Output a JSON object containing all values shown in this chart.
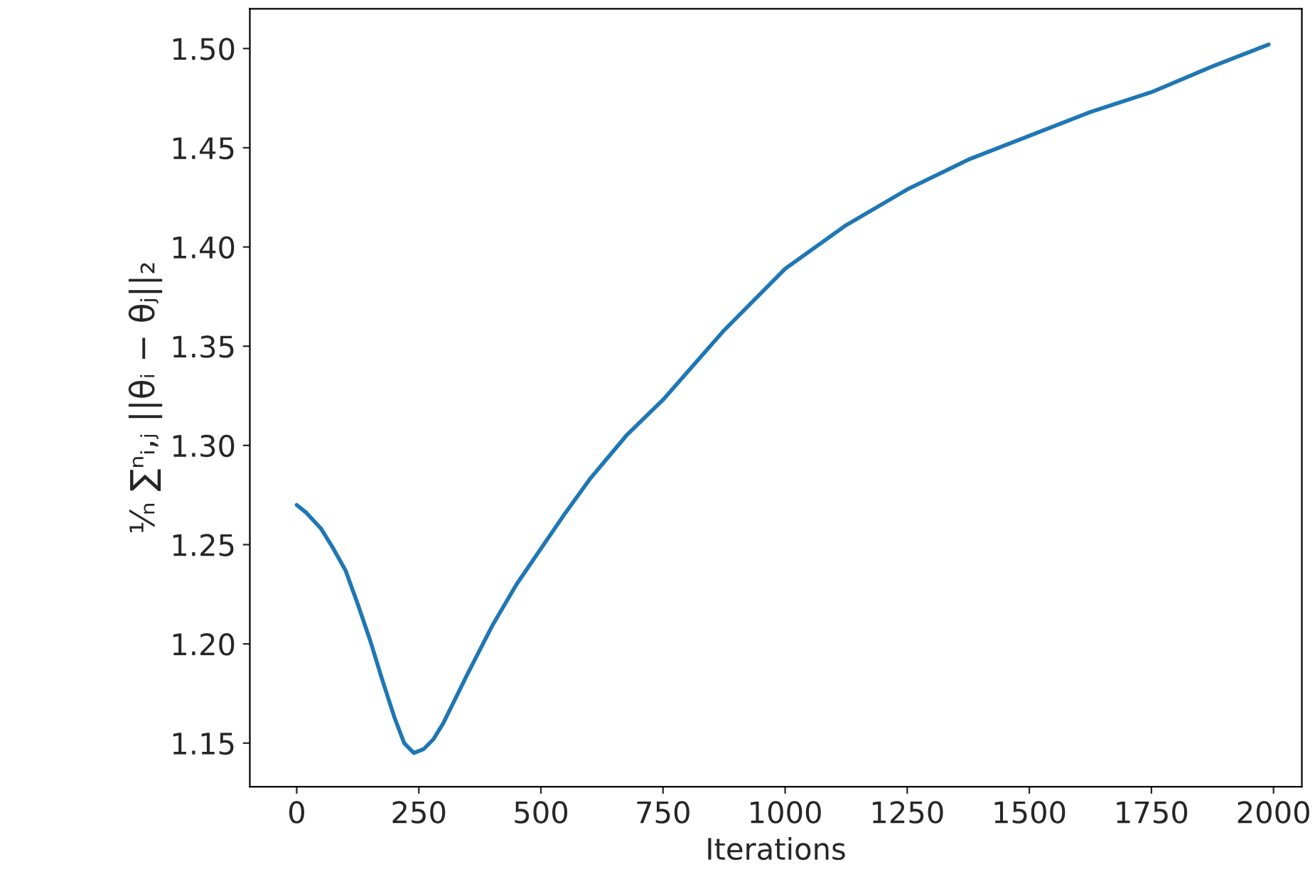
{
  "chart_data": {
    "type": "line",
    "xlabel": "Iterations",
    "ylabel": "¹⁄ₙ ∑ⁿᵢ,ⱼ ||θᵢ − θⱼ||₂",
    "x": [
      0,
      20,
      50,
      75,
      100,
      125,
      150,
      175,
      200,
      220,
      240,
      260,
      280,
      300,
      350,
      400,
      450,
      500,
      550,
      600,
      675,
      750,
      875,
      1000,
      1125,
      1250,
      1375,
      1500,
      1625,
      1750,
      1875,
      1990
    ],
    "series": [
      {
        "color": "#1f77b4",
        "values": [
          1.27,
          1.266,
          1.258,
          1.248,
          1.237,
          1.22,
          1.202,
          1.182,
          1.163,
          1.15,
          1.145,
          1.147,
          1.152,
          1.16,
          1.185,
          1.209,
          1.23,
          1.248,
          1.266,
          1.283,
          1.305,
          1.323,
          1.358,
          1.389,
          1.411,
          1.429,
          1.444,
          1.456,
          1.468,
          1.478,
          1.491,
          1.502
        ]
      }
    ],
    "xlim": [
      -96,
      2058
    ],
    "ylim": [
      1.128,
      1.52
    ],
    "xticks": [
      0,
      250,
      500,
      750,
      1000,
      1250,
      1500,
      1750,
      2000
    ],
    "yticks": [
      {
        "value": 1.15,
        "label": "1.15"
      },
      {
        "value": 1.2,
        "label": "1.20"
      },
      {
        "value": 1.25,
        "label": "1.25"
      },
      {
        "value": 1.3,
        "label": "1.30"
      },
      {
        "value": 1.35,
        "label": "1.35"
      },
      {
        "value": 1.4,
        "label": "1.40"
      },
      {
        "value": 1.45,
        "label": "1.45"
      },
      {
        "value": 1.5,
        "label": "1.50"
      }
    ],
    "grid": false,
    "marker": "none",
    "line_style": "solid"
  }
}
